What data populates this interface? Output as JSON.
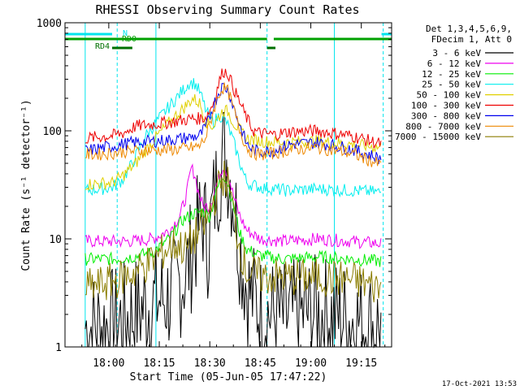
{
  "chart_data": {
    "type": "line",
    "title": "RHESSI Observing Summary Count Rates",
    "xlabel": "Start Time (05-Jun-05 17:47:22)",
    "ylabel": "Count Rate (s⁻¹ detector⁻¹)",
    "ylog": true,
    "ylim": [
      1,
      1000
    ],
    "xlim_minutes_after_1747": [
      0,
      97
    ],
    "x_ticks": [
      "18:00",
      "18:15",
      "18:30",
      "18:45",
      "19:00",
      "19:15"
    ],
    "y_ticks": [
      "1",
      "10",
      "100",
      "1000"
    ],
    "legend_header": [
      "Det 1,3,4,5,6,9,",
      "FDecim 1, Att 0"
    ],
    "legend_position": "top-right",
    "footer_date": "17-Oct-2021 13:53",
    "flags": [
      {
        "name": "N",
        "color": "#00e5ee"
      },
      {
        "name": "RD0",
        "color": "#00a000"
      },
      {
        "name": "RD4",
        "color": "#007000"
      }
    ],
    "series": [
      {
        "name": "3 - 6 keV",
        "color": "#000000",
        "points": [
          [
            6,
            1.5
          ],
          [
            14,
            1.6
          ],
          [
            20,
            2
          ],
          [
            26,
            2.6
          ],
          [
            32,
            3
          ],
          [
            36,
            5
          ],
          [
            38,
            8
          ],
          [
            39.5,
            12
          ],
          [
            41,
            16
          ],
          [
            42.5,
            9
          ],
          [
            44,
            20
          ],
          [
            46,
            45
          ],
          [
            47,
            65
          ],
          [
            48,
            55
          ],
          [
            50,
            25
          ],
          [
            52,
            8
          ],
          [
            54,
            3.5
          ],
          [
            58,
            2.2
          ],
          [
            65,
            1.8
          ],
          [
            75,
            2.1
          ],
          [
            85,
            1.8
          ],
          [
            94,
            1.5
          ]
        ]
      },
      {
        "name": "6 - 12 keV",
        "color": "#ee00ee",
        "points": [
          [
            6,
            9.5
          ],
          [
            14,
            9.5
          ],
          [
            20,
            9.5
          ],
          [
            26,
            10
          ],
          [
            31,
            12
          ],
          [
            34,
            16
          ],
          [
            36,
            25
          ],
          [
            37.5,
            45
          ],
          [
            38.5,
            40
          ],
          [
            39.5,
            28
          ],
          [
            41,
            20
          ],
          [
            43,
            20
          ],
          [
            45,
            32
          ],
          [
            47,
            48
          ],
          [
            48.5,
            40
          ],
          [
            50,
            25
          ],
          [
            52,
            16
          ],
          [
            54,
            12
          ],
          [
            58,
            10
          ],
          [
            65,
            9.5
          ],
          [
            75,
            10
          ],
          [
            85,
            9.5
          ],
          [
            94,
            9
          ]
        ]
      },
      {
        "name": "12 - 25 keV",
        "color": "#00ee00",
        "points": [
          [
            6,
            6.5
          ],
          [
            14,
            6.5
          ],
          [
            20,
            6.8
          ],
          [
            26,
            7.5
          ],
          [
            31,
            10
          ],
          [
            35,
            15
          ],
          [
            38,
            17
          ],
          [
            41,
            18
          ],
          [
            43,
            16
          ],
          [
            45,
            28
          ],
          [
            47,
            40
          ],
          [
            48.5,
            32
          ],
          [
            50,
            20
          ],
          [
            52,
            11
          ],
          [
            54,
            8
          ],
          [
            58,
            7
          ],
          [
            65,
            6.5
          ],
          [
            75,
            6.8
          ],
          [
            85,
            6.5
          ],
          [
            94,
            6.2
          ]
        ]
      },
      {
        "name": "25 - 50 keV",
        "color": "#00eeee",
        "points": [
          [
            6,
            28
          ],
          [
            14,
            30
          ],
          [
            17,
            35
          ],
          [
            20,
            50
          ],
          [
            24,
            90
          ],
          [
            28,
            130
          ],
          [
            33,
            200
          ],
          [
            37,
            280
          ],
          [
            38.5,
            275
          ],
          [
            40,
            230
          ],
          [
            42,
            150
          ],
          [
            44,
            120
          ],
          [
            46,
            140
          ],
          [
            48,
            120
          ],
          [
            50,
            80
          ],
          [
            52,
            50
          ],
          [
            54,
            33
          ],
          [
            58,
            30
          ],
          [
            62,
            29
          ],
          [
            66,
            28
          ],
          [
            75,
            29
          ],
          [
            85,
            28
          ],
          [
            94,
            27
          ]
        ]
      },
      {
        "name": "50 - 100 keV",
        "color": "#e0d000",
        "points": [
          [
            6,
            32
          ],
          [
            14,
            33
          ],
          [
            17,
            38
          ],
          [
            21,
            50
          ],
          [
            26,
            80
          ],
          [
            31,
            120
          ],
          [
            35,
            160
          ],
          [
            38,
            200
          ],
          [
            40,
            180
          ],
          [
            42,
            120
          ],
          [
            44,
            110
          ],
          [
            46,
            140
          ],
          [
            47,
            155
          ],
          [
            48.5,
            150
          ],
          [
            50,
            120
          ],
          [
            52,
            100
          ],
          [
            54,
            85
          ],
          [
            58,
            80
          ],
          [
            65,
            78
          ],
          [
            75,
            80
          ],
          [
            85,
            75
          ],
          [
            94,
            70
          ]
        ]
      },
      {
        "name": "100 - 300 keV",
        "color": "#ee0000",
        "points": [
          [
            6,
            85
          ],
          [
            14,
            90
          ],
          [
            17,
            95
          ],
          [
            21,
            110
          ],
          [
            26,
            115
          ],
          [
            31,
            120
          ],
          [
            35,
            125
          ],
          [
            38,
            130
          ],
          [
            40,
            130
          ],
          [
            42,
            135
          ],
          [
            44,
            180
          ],
          [
            46,
            300
          ],
          [
            47,
            360
          ],
          [
            48.5,
            340
          ],
          [
            50,
            250
          ],
          [
            52,
            180
          ],
          [
            54,
            130
          ],
          [
            56,
            100
          ],
          [
            58,
            95
          ],
          [
            62,
            92
          ],
          [
            67,
            98
          ],
          [
            75,
            100
          ],
          [
            85,
            90
          ],
          [
            94,
            75
          ]
        ]
      },
      {
        "name": "300 - 800 keV",
        "color": "#0000ee",
        "points": [
          [
            6,
            65
          ],
          [
            14,
            72
          ],
          [
            17,
            75
          ],
          [
            21,
            78
          ],
          [
            26,
            80
          ],
          [
            31,
            82
          ],
          [
            35,
            85
          ],
          [
            38,
            88
          ],
          [
            40,
            90
          ],
          [
            42,
            110
          ],
          [
            44,
            170
          ],
          [
            46,
            240
          ],
          [
            47,
            260
          ],
          [
            48.5,
            240
          ],
          [
            50,
            170
          ],
          [
            52,
            110
          ],
          [
            54,
            75
          ],
          [
            56,
            66
          ],
          [
            58,
            64
          ],
          [
            62,
            66
          ],
          [
            67,
            75
          ],
          [
            75,
            78
          ],
          [
            85,
            68
          ],
          [
            94,
            55
          ]
        ]
      },
      {
        "name": "800 - 7000 keV",
        "color": "#ee8800",
        "points": [
          [
            6,
            60
          ],
          [
            14,
            62
          ],
          [
            17,
            64
          ],
          [
            21,
            65
          ],
          [
            26,
            66
          ],
          [
            31,
            67
          ],
          [
            35,
            68
          ],
          [
            38,
            70
          ],
          [
            40,
            72
          ],
          [
            42,
            90
          ],
          [
            44,
            150
          ],
          [
            46,
            230
          ],
          [
            47,
            250
          ],
          [
            48.5,
            230
          ],
          [
            50,
            160
          ],
          [
            52,
            100
          ],
          [
            54,
            70
          ],
          [
            56,
            62
          ],
          [
            58,
            60
          ],
          [
            62,
            62
          ],
          [
            67,
            67
          ],
          [
            75,
            70
          ],
          [
            85,
            62
          ],
          [
            94,
            48
          ]
        ]
      },
      {
        "name": "7000 - 15000 keV",
        "color": "#8b7d00",
        "points": [
          [
            6,
            3.5
          ],
          [
            14,
            4
          ],
          [
            20,
            4.8
          ],
          [
            25,
            6
          ],
          [
            30,
            8
          ],
          [
            33,
            9
          ],
          [
            36,
            8
          ],
          [
            38,
            10
          ],
          [
            40,
            12
          ],
          [
            42,
            14
          ],
          [
            44,
            22
          ],
          [
            46,
            32
          ],
          [
            47,
            38
          ],
          [
            48.5,
            32
          ],
          [
            50,
            18
          ],
          [
            52,
            8
          ],
          [
            54,
            5
          ],
          [
            58,
            4.5
          ],
          [
            65,
            4.4
          ],
          [
            75,
            4.4
          ],
          [
            85,
            4.2
          ],
          [
            94,
            3.5
          ]
        ]
      }
    ]
  }
}
